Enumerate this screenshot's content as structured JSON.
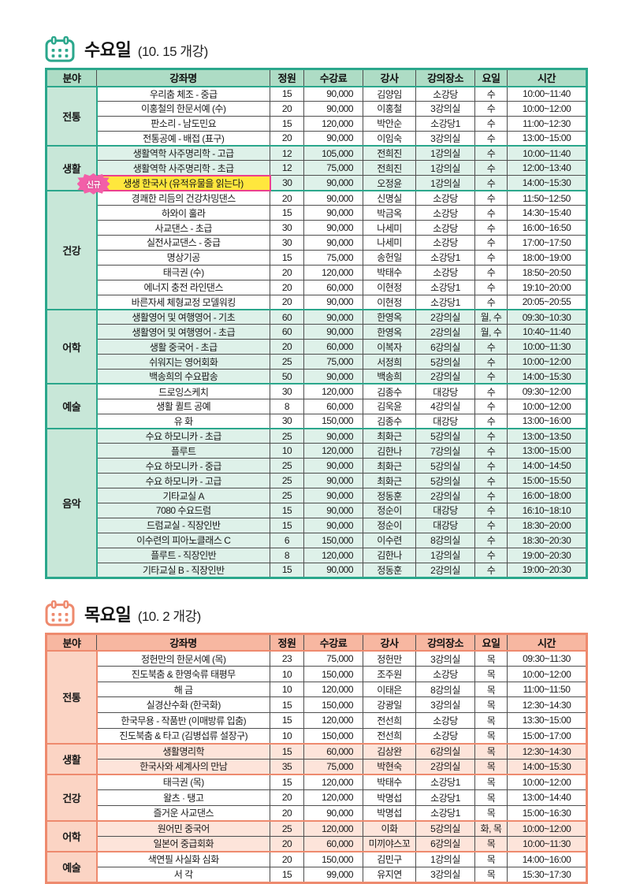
{
  "badge": {
    "label": "신규",
    "bg": "#f25fa8",
    "border": "#b92d72"
  },
  "highlight": {
    "bg": "#ffe73d",
    "border": "#ec3f8c"
  },
  "tables": [
    {
      "id": "wednesday",
      "title": "수요일",
      "subtitle": "(10. 15 개강)",
      "theme": {
        "accent": "#2ba78c",
        "header_bg": "#aedcc5",
        "category_bg": "#c8e7d8",
        "tint_bg": "#def1e9"
      },
      "columns": [
        "분야",
        "강좌명",
        "정원",
        "수강료",
        "강사",
        "강의장소",
        "요일",
        "시간"
      ],
      "categories": [
        {
          "name": "전통",
          "tinted": false,
          "rows": [
            {
              "course": "우리춤 체조 - 중급",
              "capacity": "15",
              "fee": "90,000",
              "instructor": "김양임",
              "room": "소강당",
              "day": "수",
              "time": "10:00~11:40"
            },
            {
              "course": "이홍철의 한문서예 (수)",
              "capacity": "20",
              "fee": "90,000",
              "instructor": "이홍철",
              "room": "3강의실",
              "day": "수",
              "time": "10:00~12:00"
            },
            {
              "course": "판소리 - 남도민요",
              "capacity": "15",
              "fee": "120,000",
              "instructor": "박안순",
              "room": "소강당1",
              "day": "수",
              "time": "11:00~12:30"
            },
            {
              "course": "전통공예 - 배접 (표구)",
              "capacity": "20",
              "fee": "90,000",
              "instructor": "이임숙",
              "room": "3강의실",
              "day": "수",
              "time": "13:00~15:00"
            }
          ]
        },
        {
          "name": "생활",
          "tinted": true,
          "rows": [
            {
              "course": "생활역학 사주명리학 - 고급",
              "capacity": "12",
              "fee": "105,000",
              "instructor": "전희진",
              "room": "1강의실",
              "day": "수",
              "time": "10:00~11:40"
            },
            {
              "course": "생활역학 사주명리학 - 초급",
              "capacity": "12",
              "fee": "75,000",
              "instructor": "전희진",
              "room": "1강의실",
              "day": "수",
              "time": "12:00~13:40"
            },
            {
              "course": "생생 한국사 (유적유물을 읽는다)",
              "capacity": "30",
              "fee": "90,000",
              "instructor": "오정윤",
              "room": "1강의실",
              "day": "수",
              "time": "14:00~15:30",
              "new": true,
              "highlight": true
            }
          ]
        },
        {
          "name": "건강",
          "tinted": false,
          "rows": [
            {
              "course": "경쾌한 리듬의 건강차밍댄스",
              "capacity": "20",
              "fee": "90,000",
              "instructor": "신명실",
              "room": "소강당",
              "day": "수",
              "time": "11:50~12:50"
            },
            {
              "course": "하와이 훌라",
              "capacity": "15",
              "fee": "90,000",
              "instructor": "박금옥",
              "room": "소강당",
              "day": "수",
              "time": "14:30~15:40"
            },
            {
              "course": "사교댄스 - 초급",
              "capacity": "30",
              "fee": "90,000",
              "instructor": "나세미",
              "room": "소강당",
              "day": "수",
              "time": "16:00~16:50"
            },
            {
              "course": "실전사교댄스 - 중급",
              "capacity": "30",
              "fee": "90,000",
              "instructor": "나세미",
              "room": "소강당",
              "day": "수",
              "time": "17:00~17:50"
            },
            {
              "course": "명상기공",
              "capacity": "15",
              "fee": "75,000",
              "instructor": "송헌일",
              "room": "소강당1",
              "day": "수",
              "time": "18:00~19:00"
            },
            {
              "course": "태극권 (수)",
              "capacity": "20",
              "fee": "120,000",
              "instructor": "박태수",
              "room": "소강당",
              "day": "수",
              "time": "18:50~20:50"
            },
            {
              "course": "에너지 충전 라인댄스",
              "capacity": "20",
              "fee": "60,000",
              "instructor": "이현정",
              "room": "소강당1",
              "day": "수",
              "time": "19:10~20:00"
            },
            {
              "course": "바른자세 체형교정 모델워킹",
              "capacity": "20",
              "fee": "90,000",
              "instructor": "이현정",
              "room": "소강당1",
              "day": "수",
              "time": "20:05~20:55"
            }
          ]
        },
        {
          "name": "어학",
          "tinted": true,
          "rows": [
            {
              "course": "생활영어 및 여행영어 - 기초",
              "capacity": "60",
              "fee": "90,000",
              "instructor": "한영옥",
              "room": "2강의실",
              "day": "월, 수",
              "time": "09:30~10:30"
            },
            {
              "course": "생활영어 및 여행영어 - 초급",
              "capacity": "60",
              "fee": "90,000",
              "instructor": "한영옥",
              "room": "2강의실",
              "day": "월, 수",
              "time": "10:40~11:40"
            },
            {
              "course": "생활 중국어 - 초급",
              "capacity": "20",
              "fee": "60,000",
              "instructor": "이복자",
              "room": "6강의실",
              "day": "수",
              "time": "10:00~11:30"
            },
            {
              "course": "쉬워지는 영어회화",
              "capacity": "25",
              "fee": "75,000",
              "instructor": "서정희",
              "room": "5강의실",
              "day": "수",
              "time": "10:00~12:00"
            },
            {
              "course": "백송희의 수요팝송",
              "capacity": "50",
              "fee": "90,000",
              "instructor": "백송희",
              "room": "2강의실",
              "day": "수",
              "time": "14:00~15:30"
            }
          ]
        },
        {
          "name": "예술",
          "tinted": false,
          "rows": [
            {
              "course": "드로잉스케치",
              "capacity": "30",
              "fee": "120,000",
              "instructor": "김종수",
              "room": "대강당",
              "day": "수",
              "time": "09:30~12:00"
            },
            {
              "course": "생활 퀼트 공예",
              "capacity": "8",
              "fee": "60,000",
              "instructor": "김욱윤",
              "room": "4강의실",
              "day": "수",
              "time": "10:00~12:00"
            },
            {
              "course": "유 화",
              "capacity": "30",
              "fee": "150,000",
              "instructor": "김종수",
              "room": "대강당",
              "day": "수",
              "time": "13:00~16:00"
            }
          ]
        },
        {
          "name": "음악",
          "tinted": true,
          "rows": [
            {
              "course": "수요 하모니카 - 초급",
              "capacity": "25",
              "fee": "90,000",
              "instructor": "최화근",
              "room": "5강의실",
              "day": "수",
              "time": "13:00~13:50"
            },
            {
              "course": "플루트",
              "capacity": "10",
              "fee": "120,000",
              "instructor": "김한나",
              "room": "7강의실",
              "day": "수",
              "time": "13:00~15:00"
            },
            {
              "course": "수요 하모니카 - 중급",
              "capacity": "25",
              "fee": "90,000",
              "instructor": "최화근",
              "room": "5강의실",
              "day": "수",
              "time": "14:00~14:50"
            },
            {
              "course": "수요 하모니카 - 고급",
              "capacity": "25",
              "fee": "90,000",
              "instructor": "최화근",
              "room": "5강의실",
              "day": "수",
              "time": "15:00~15:50"
            },
            {
              "course": "기타교실 A",
              "capacity": "25",
              "fee": "90,000",
              "instructor": "정동훈",
              "room": "2강의실",
              "day": "수",
              "time": "16:00~18:00"
            },
            {
              "course": "7080 수요드럼",
              "capacity": "15",
              "fee": "90,000",
              "instructor": "정순이",
              "room": "대강당",
              "day": "수",
              "time": "16:10~18:10"
            },
            {
              "course": "드럼교실 - 직장인반",
              "capacity": "15",
              "fee": "90,000",
              "instructor": "정순이",
              "room": "대강당",
              "day": "수",
              "time": "18:30~20:00"
            },
            {
              "course": "이수련의 피아노클래스 C",
              "capacity": "6",
              "fee": "150,000",
              "instructor": "이수련",
              "room": "8강의실",
              "day": "수",
              "time": "18:30~20:30"
            },
            {
              "course": "플루트 - 직장인반",
              "capacity": "8",
              "fee": "120,000",
              "instructor": "김한나",
              "room": "1강의실",
              "day": "수",
              "time": "19:00~20:30"
            },
            {
              "course": "기타교실 B - 직장인반",
              "capacity": "15",
              "fee": "90,000",
              "instructor": "정동훈",
              "room": "2강의실",
              "day": "수",
              "time": "19:00~20:30"
            }
          ]
        }
      ]
    },
    {
      "id": "thursday",
      "title": "목요일",
      "subtitle": "(10. 2 개강)",
      "theme": {
        "accent": "#ee8a6e",
        "header_bg": "#f7b7a1",
        "category_bg": "#fbd4c4",
        "tint_bg": "#fde4da"
      },
      "columns": [
        "분야",
        "강좌명",
        "정원",
        "수강료",
        "강사",
        "강의장소",
        "요일",
        "시간"
      ],
      "categories": [
        {
          "name": "전통",
          "tinted": false,
          "rows": [
            {
              "course": "정헌만의 한문서예 (목)",
              "capacity": "23",
              "fee": "75,000",
              "instructor": "정헌만",
              "room": "3강의실",
              "day": "목",
              "time": "09:30~11:30"
            },
            {
              "course": "진도북춤 & 한영숙류 태평무",
              "capacity": "10",
              "fee": "150,000",
              "instructor": "조주원",
              "room": "소강당",
              "day": "목",
              "time": "10:00~12:00"
            },
            {
              "course": "해 금",
              "capacity": "10",
              "fee": "120,000",
              "instructor": "이태은",
              "room": "8강의실",
              "day": "목",
              "time": "11:00~11:50"
            },
            {
              "course": "실경산수화 (한국화)",
              "capacity": "15",
              "fee": "150,000",
              "instructor": "강광일",
              "room": "3강의실",
              "day": "목",
              "time": "12:30~14:30"
            },
            {
              "course": "한국무용 - 작품반 (이매방류 입춤)",
              "capacity": "15",
              "fee": "120,000",
              "instructor": "전선희",
              "room": "소강당",
              "day": "목",
              "time": "13:30~15:00"
            },
            {
              "course": "진도북춤 & 타고 (김병섭류 설장구)",
              "capacity": "10",
              "fee": "150,000",
              "instructor": "전선희",
              "room": "소강당",
              "day": "목",
              "time": "15:00~17:00"
            }
          ]
        },
        {
          "name": "생활",
          "tinted": true,
          "rows": [
            {
              "course": "생활명리학",
              "capacity": "15",
              "fee": "60,000",
              "instructor": "김상완",
              "room": "6강의실",
              "day": "목",
              "time": "12:30~14:30"
            },
            {
              "course": "한국사와 세계사의 만남",
              "capacity": "35",
              "fee": "75,000",
              "instructor": "박현숙",
              "room": "2강의실",
              "day": "목",
              "time": "14:00~15:30"
            }
          ]
        },
        {
          "name": "건강",
          "tinted": false,
          "rows": [
            {
              "course": "태극권 (목)",
              "capacity": "15",
              "fee": "120,000",
              "instructor": "박태수",
              "room": "소강당1",
              "day": "목",
              "time": "10:00~12:00"
            },
            {
              "course": "왈츠 · 탱고",
              "capacity": "20",
              "fee": "120,000",
              "instructor": "박명섭",
              "room": "소강당1",
              "day": "목",
              "time": "13:00~14:40"
            },
            {
              "course": "즐거운 사교댄스",
              "capacity": "20",
              "fee": "90,000",
              "instructor": "박명섭",
              "room": "소강당1",
              "day": "목",
              "time": "15:00~16:30"
            }
          ]
        },
        {
          "name": "어학",
          "tinted": true,
          "rows": [
            {
              "course": "원어민 중국어",
              "capacity": "25",
              "fee": "120,000",
              "instructor": "이화",
              "room": "5강의실",
              "day": "화, 목",
              "time": "10:00~12:00"
            },
            {
              "course": "일본어 중급회화",
              "capacity": "20",
              "fee": "60,000",
              "instructor": "미끼야스꼬",
              "room": "6강의실",
              "day": "목",
              "time": "10:00~11:30"
            }
          ]
        },
        {
          "name": "예술",
          "tinted": false,
          "rows": [
            {
              "course": "색연필 사실화 심화",
              "capacity": "20",
              "fee": "150,000",
              "instructor": "김민구",
              "room": "1강의실",
              "day": "목",
              "time": "14:00~16:00"
            },
            {
              "course": "서 각",
              "capacity": "15",
              "fee": "99,000",
              "instructor": "유지연",
              "room": "3강의실",
              "day": "목",
              "time": "15:30~17:30"
            }
          ]
        }
      ]
    }
  ]
}
